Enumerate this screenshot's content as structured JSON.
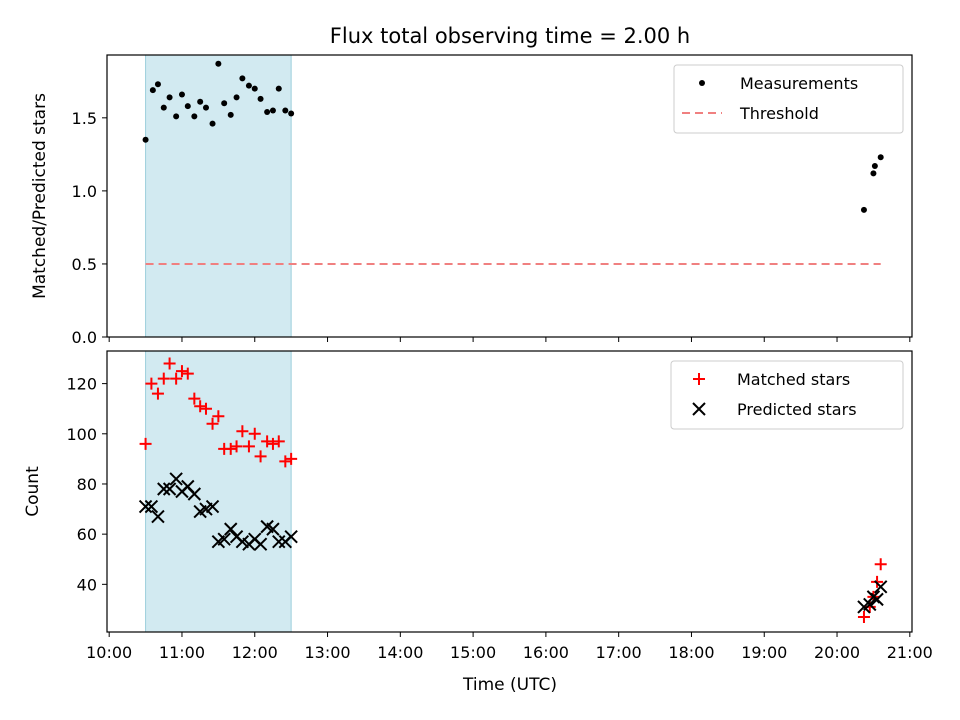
{
  "chart_data": {
    "title": "Flux total observing time = 2.00 h",
    "xlabel": "Time (UTC)",
    "x_ticks": [
      "10:00",
      "11:00",
      "12:00",
      "13:00",
      "14:00",
      "15:00",
      "16:00",
      "17:00",
      "18:00",
      "19:00",
      "20:00",
      "21:00"
    ],
    "x_range_hours": [
      9.97,
      21.03
    ],
    "shaded_interval_hours": [
      10.5,
      12.5
    ],
    "shade_color": "#add8e6",
    "panels": [
      {
        "type": "scatter",
        "ylabel": "Matched/Predicted stars",
        "ylim": [
          0.0,
          1.93
        ],
        "y_ticks": [
          0.0,
          0.5,
          1.0,
          1.5
        ],
        "legend_position": "upper right",
        "series": [
          {
            "name": "Measurements",
            "marker": "dot",
            "color": "#000000",
            "x": [
              10.5,
              10.6,
              10.67,
              10.75,
              10.83,
              10.92,
              11.0,
              11.08,
              11.17,
              11.25,
              11.33,
              11.42,
              11.5,
              11.58,
              11.67,
              11.75,
              11.83,
              11.92,
              12.0,
              12.08,
              12.17,
              12.25,
              12.33,
              12.42,
              12.5,
              20.37,
              20.5,
              20.52,
              20.6
            ],
            "y": [
              1.35,
              1.69,
              1.73,
              1.57,
              1.64,
              1.51,
              1.66,
              1.58,
              1.51,
              1.61,
              1.57,
              1.46,
              1.87,
              1.6,
              1.52,
              1.64,
              1.77,
              1.72,
              1.7,
              1.63,
              1.54,
              1.55,
              1.7,
              1.55,
              1.53,
              0.87,
              1.12,
              1.17,
              1.23
            ]
          },
          {
            "name": "Threshold",
            "type": "line",
            "style": "dashed",
            "color": "#f08080",
            "x": [
              10.5,
              20.6
            ],
            "y": [
              0.5,
              0.5
            ]
          }
        ]
      },
      {
        "type": "scatter",
        "ylabel": "Count",
        "ylim": [
          21,
          133
        ],
        "y_ticks": [
          40,
          60,
          80,
          100,
          120
        ],
        "legend_position": "upper right",
        "series": [
          {
            "name": "Matched stars",
            "marker": "plus",
            "color": "#ff0000",
            "x": [
              10.5,
              10.58,
              10.67,
              10.75,
              10.83,
              10.92,
              11.0,
              11.08,
              11.17,
              11.25,
              11.33,
              11.42,
              11.5,
              11.58,
              11.67,
              11.75,
              11.83,
              11.92,
              12.0,
              12.08,
              12.17,
              12.25,
              12.33,
              12.42,
              12.5,
              20.37,
              20.45,
              20.5,
              20.55,
              20.6
            ],
            "y": [
              96,
              120,
              116,
              122,
              128,
              122,
              125,
              124,
              114,
              111,
              110,
              104,
              107,
              94,
              94,
              95,
              101,
              95,
              100,
              91,
              97,
              96,
              97,
              89,
              90,
              27,
              31,
              35,
              41,
              48
            ]
          },
          {
            "name": "Predicted stars",
            "marker": "x",
            "color": "#000000",
            "x": [
              10.5,
              10.58,
              10.67,
              10.75,
              10.83,
              10.92,
              11.0,
              11.08,
              11.17,
              11.25,
              11.33,
              11.42,
              11.5,
              11.58,
              11.67,
              11.75,
              11.83,
              11.92,
              12.0,
              12.08,
              12.17,
              12.25,
              12.33,
              12.42,
              12.5,
              20.37,
              20.45,
              20.5,
              20.55,
              20.6
            ],
            "y": [
              71,
              71,
              67,
              78,
              78,
              82,
              77,
              79,
              76,
              69,
              70,
              71,
              57,
              58,
              62,
              59,
              57,
              56,
              58,
              56,
              63,
              62,
              57,
              57,
              59,
              31,
              32,
              35,
              34,
              39
            ]
          }
        ]
      }
    ]
  }
}
